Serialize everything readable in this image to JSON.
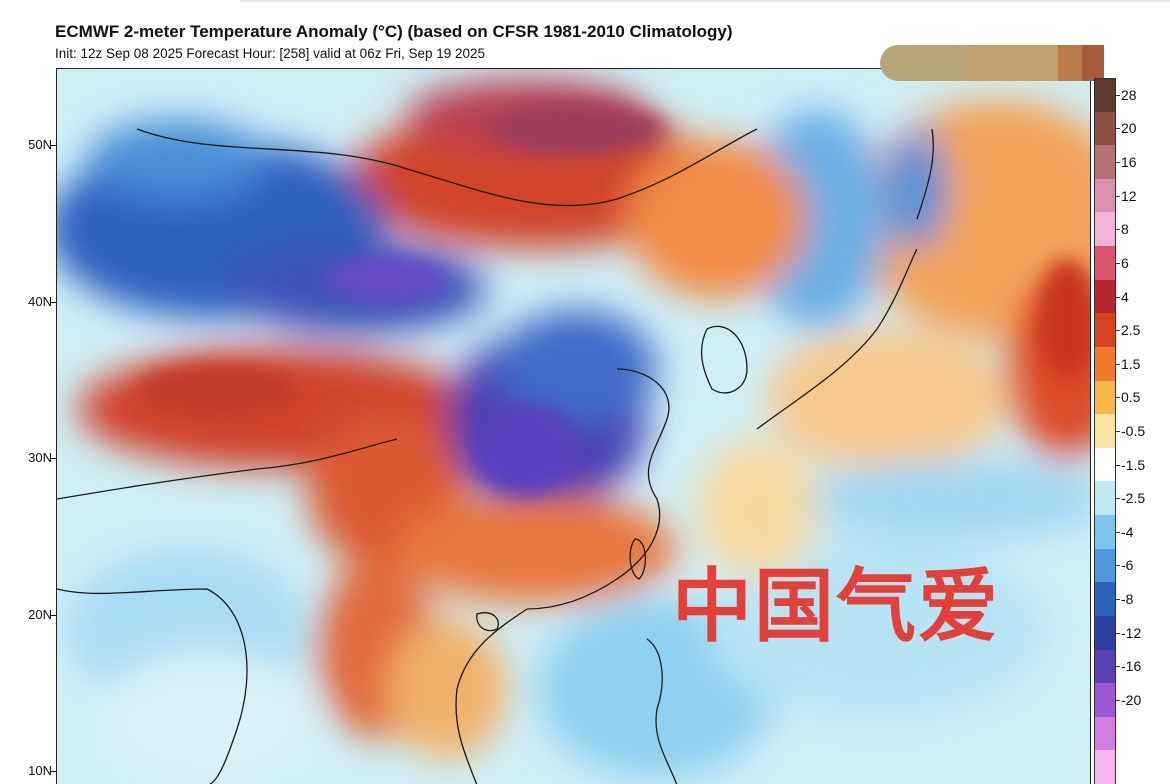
{
  "header": {
    "title": "ECMWF 2-meter Temperature Anomaly (°C) (based on CFSR 1981-2010 Climatology)",
    "subtitle": "Init: 12z Sep 08 2025   Forecast Hour: [258]   valid at 06z Fri, Sep 19 2025"
  },
  "map": {
    "lat_labels": [
      {
        "text": "50N",
        "lat": 50
      },
      {
        "text": "40N",
        "lat": 40
      },
      {
        "text": "30N",
        "lat": 30
      },
      {
        "text": "20N",
        "lat": 20
      },
      {
        "text": "10N",
        "lat": 10
      }
    ]
  },
  "colorbar": {
    "labels": [
      "28",
      "20",
      "16",
      "12",
      "8",
      "6",
      "4",
      "2.5",
      "1.5",
      "0.5",
      "-0.5",
      "-1.5",
      "-2.5",
      "-4",
      "-6",
      "-8",
      "-12",
      "-16",
      "-20"
    ],
    "colors": [
      "#5c3a2c",
      "#8d4f45",
      "#b57275",
      "#dd8fae",
      "#f2b3d8",
      "#d9566a",
      "#b82630",
      "#d8431f",
      "#f17a31",
      "#fbb64a",
      "#fbe4a1",
      "#ffffff",
      "#bde9f2",
      "#7cc6ee",
      "#4f98dd",
      "#2b63bd",
      "#2a3f9e",
      "#5a3fb5",
      "#9a58d4",
      "#d67de4",
      "#f5b5ee"
    ]
  },
  "strip_colors": [
    "#b8a678",
    "#c4a070",
    "#b87a4a",
    "#a85a3a"
  ],
  "watermark": "中国气爱"
}
